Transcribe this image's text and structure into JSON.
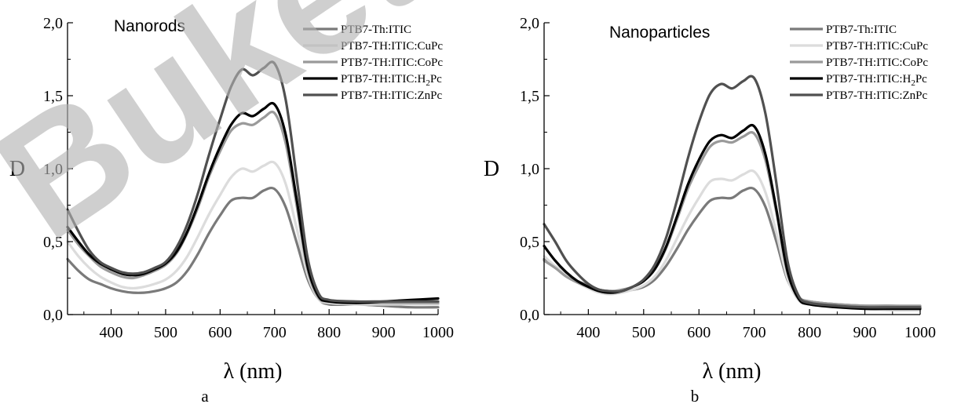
{
  "watermark": "Buket",
  "chart_data": [
    {
      "type": "line",
      "panel_label": "a",
      "title": "Nanorods",
      "xlabel": "λ (nm)",
      "ylabel": "D",
      "xlim": [
        320,
        1000
      ],
      "ylim": [
        0,
        2
      ],
      "xticks": [
        400,
        500,
        600,
        700,
        800,
        900,
        1000
      ],
      "xtick_labels": [
        "400",
        "500",
        "600",
        "700",
        "800",
        "900",
        "1000"
      ],
      "yticks": [
        0,
        0.5,
        1,
        1.5,
        2
      ],
      "ytick_labels": [
        "0,0",
        "0,5",
        "1,0",
        "1,5",
        "2,0"
      ],
      "grid": false,
      "legend_position": "top-right",
      "x": [
        320,
        340,
        360,
        380,
        400,
        420,
        440,
        460,
        480,
        500,
        520,
        540,
        560,
        580,
        600,
        620,
        640,
        660,
        680,
        700,
        720,
        740,
        760,
        780,
        800,
        850,
        900,
        950,
        1000
      ],
      "series": [
        {
          "name": "PTB7-Th:ITIC",
          "name_main": "PTB7-Th:ITIC",
          "name_sub": "",
          "name_post": "",
          "color": "#7a7a7a",
          "values": [
            0.38,
            0.3,
            0.24,
            0.21,
            0.18,
            0.16,
            0.15,
            0.15,
            0.16,
            0.18,
            0.22,
            0.3,
            0.42,
            0.56,
            0.68,
            0.78,
            0.8,
            0.8,
            0.85,
            0.86,
            0.74,
            0.5,
            0.25,
            0.11,
            0.07,
            0.07,
            0.06,
            0.05,
            0.05
          ]
        },
        {
          "name": "PTB7-TH:ITIC:CuPc",
          "name_main": "PTB7-TH:ITIC:CuPc",
          "name_sub": "",
          "name_post": "",
          "color": "#dcdcdc",
          "values": [
            0.5,
            0.4,
            0.32,
            0.26,
            0.22,
            0.19,
            0.18,
            0.19,
            0.21,
            0.24,
            0.3,
            0.4,
            0.54,
            0.69,
            0.82,
            0.94,
            1.0,
            0.98,
            1.02,
            1.04,
            0.9,
            0.6,
            0.28,
            0.11,
            0.08,
            0.07,
            0.07,
            0.07,
            0.07
          ]
        },
        {
          "name": "PTB7-TH:ITIC:CoPc",
          "name_main": "PTB7-TH:ITIC:CoPc",
          "name_sub": "",
          "name_post": "",
          "color": "#9a9a9a",
          "values": [
            0.58,
            0.48,
            0.4,
            0.33,
            0.29,
            0.26,
            0.25,
            0.27,
            0.3,
            0.34,
            0.42,
            0.56,
            0.74,
            0.95,
            1.12,
            1.26,
            1.31,
            1.3,
            1.35,
            1.38,
            1.18,
            0.76,
            0.32,
            0.12,
            0.09,
            0.08,
            0.08,
            0.08,
            0.08
          ]
        },
        {
          "name": "PTB7-TH:ITIC:H2Pc",
          "name_main": "PTB7-TH:ITIC:H",
          "name_sub": "2",
          "name_post": "Pc",
          "color": "#000000",
          "values": [
            0.6,
            0.5,
            0.41,
            0.35,
            0.31,
            0.28,
            0.27,
            0.28,
            0.31,
            0.35,
            0.43,
            0.57,
            0.76,
            0.97,
            1.15,
            1.3,
            1.38,
            1.36,
            1.41,
            1.44,
            1.24,
            0.8,
            0.34,
            0.13,
            0.09,
            0.08,
            0.09,
            0.1,
            0.11
          ]
        },
        {
          "name": "PTB7-TH:ITIC:ZnPc",
          "name_main": "PTB7-TH:ITIC:ZnPc",
          "name_sub": "",
          "name_post": "",
          "color": "#505050",
          "values": [
            0.72,
            0.57,
            0.44,
            0.36,
            0.32,
            0.29,
            0.28,
            0.29,
            0.32,
            0.36,
            0.46,
            0.62,
            0.84,
            1.1,
            1.34,
            1.56,
            1.68,
            1.64,
            1.69,
            1.72,
            1.48,
            0.95,
            0.4,
            0.15,
            0.1,
            0.09,
            0.09,
            0.09,
            0.09
          ]
        }
      ]
    },
    {
      "type": "line",
      "panel_label": "b",
      "title": "Nanoparticles",
      "xlabel": "λ (nm)",
      "ylabel": "D",
      "xlim": [
        320,
        1000
      ],
      "ylim": [
        0,
        2
      ],
      "xticks": [
        400,
        500,
        600,
        700,
        800,
        900,
        1000
      ],
      "xtick_labels": [
        "400",
        "500",
        "600",
        "700",
        "800",
        "900",
        "1000"
      ],
      "yticks": [
        0,
        0.5,
        1,
        1.5,
        2
      ],
      "ytick_labels": [
        "0,0",
        "0,5",
        "1,0",
        "1,5",
        "2,0"
      ],
      "grid": false,
      "legend_position": "top-right",
      "x": [
        320,
        340,
        360,
        380,
        400,
        420,
        440,
        460,
        480,
        500,
        520,
        540,
        560,
        580,
        600,
        620,
        640,
        660,
        680,
        700,
        720,
        740,
        760,
        780,
        800,
        850,
        900,
        950,
        1000
      ],
      "series": [
        {
          "name": "PTB7-Th:ITIC",
          "name_main": "PTB7-Th:ITIC",
          "name_sub": "",
          "name_post": "",
          "color": "#7a7a7a",
          "values": [
            0.38,
            0.33,
            0.27,
            0.23,
            0.2,
            0.17,
            0.16,
            0.16,
            0.17,
            0.19,
            0.24,
            0.33,
            0.45,
            0.58,
            0.69,
            0.78,
            0.8,
            0.8,
            0.85,
            0.86,
            0.74,
            0.5,
            0.24,
            0.12,
            0.09,
            0.07,
            0.06,
            0.06,
            0.05
          ]
        },
        {
          "name": "PTB7-TH:ITIC:CuPc",
          "name_main": "PTB7-TH:ITIC:CuPc",
          "name_sub": "",
          "name_post": "",
          "color": "#dcdcdc",
          "values": [
            0.4,
            0.33,
            0.27,
            0.22,
            0.18,
            0.15,
            0.14,
            0.15,
            0.17,
            0.2,
            0.26,
            0.37,
            0.52,
            0.67,
            0.8,
            0.91,
            0.93,
            0.92,
            0.96,
            0.98,
            0.84,
            0.56,
            0.25,
            0.1,
            0.07,
            0.05,
            0.04,
            0.03,
            0.03
          ]
        },
        {
          "name": "PTB7-TH:ITIC:CoPc",
          "name_main": "PTB7-TH:ITIC:CoPc",
          "name_sub": "",
          "name_post": "",
          "color": "#9a9a9a",
          "values": [
            0.37,
            0.32,
            0.26,
            0.22,
            0.19,
            0.17,
            0.16,
            0.17,
            0.19,
            0.23,
            0.31,
            0.45,
            0.65,
            0.86,
            1.02,
            1.15,
            1.19,
            1.18,
            1.22,
            1.24,
            1.06,
            0.7,
            0.29,
            0.12,
            0.09,
            0.07,
            0.06,
            0.06,
            0.06
          ]
        },
        {
          "name": "PTB7-TH:ITIC:H2Pc",
          "name_main": "PTB7-TH:ITIC:H",
          "name_sub": "2",
          "name_post": "Pc",
          "color": "#000000",
          "values": [
            0.47,
            0.37,
            0.29,
            0.23,
            0.19,
            0.16,
            0.15,
            0.16,
            0.19,
            0.23,
            0.31,
            0.46,
            0.67,
            0.89,
            1.06,
            1.19,
            1.23,
            1.21,
            1.26,
            1.29,
            1.1,
            0.72,
            0.3,
            0.11,
            0.07,
            0.05,
            0.04,
            0.04,
            0.04
          ]
        },
        {
          "name": "PTB7-TH:ITIC:ZnPc",
          "name_main": "PTB7-TH:ITIC:ZnPc",
          "name_sub": "",
          "name_post": "",
          "color": "#505050",
          "values": [
            0.62,
            0.5,
            0.37,
            0.28,
            0.21,
            0.17,
            0.16,
            0.16,
            0.19,
            0.24,
            0.34,
            0.52,
            0.78,
            1.07,
            1.32,
            1.51,
            1.58,
            1.55,
            1.6,
            1.62,
            1.38,
            0.9,
            0.37,
            0.13,
            0.08,
            0.06,
            0.05,
            0.05,
            0.05
          ]
        }
      ]
    }
  ]
}
